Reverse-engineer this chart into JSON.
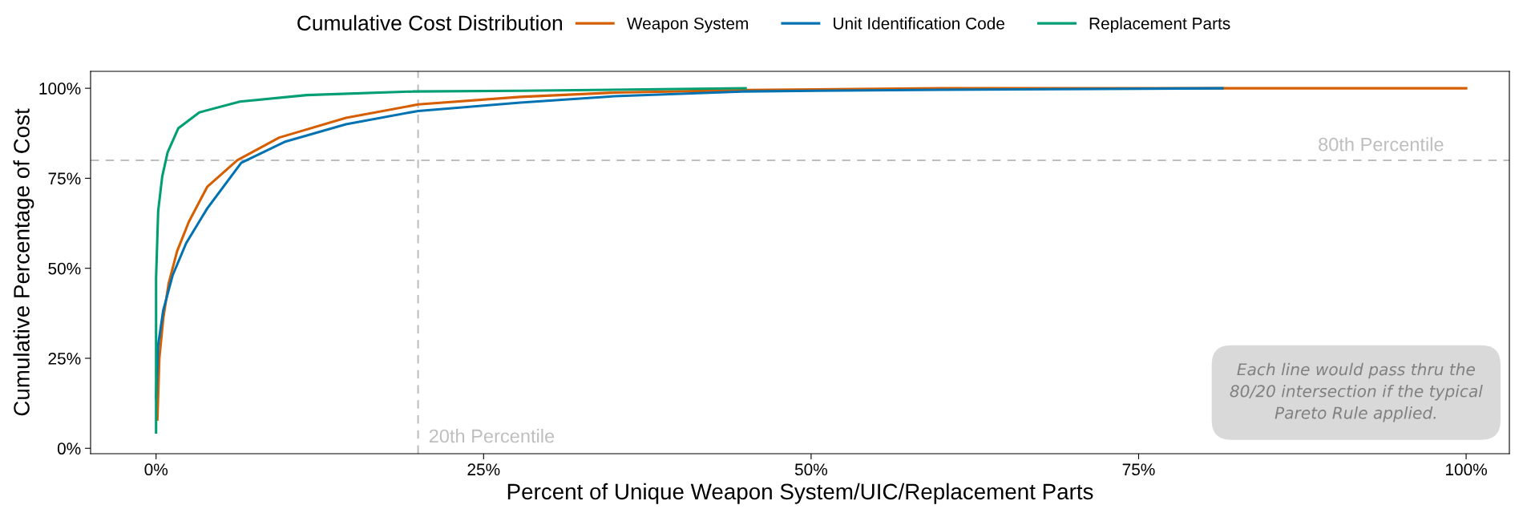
{
  "chart_data": {
    "type": "line",
    "legend_title": "Cumulative Cost Distribution",
    "legend": "top",
    "xlabel": "Percent of Unique Weapon System/UIC/Replacement Parts",
    "ylabel": "Cumulative Percentage of Cost",
    "xlim": [
      -5,
      103.3
    ],
    "ylim": [
      -1.5,
      104.7
    ],
    "xticks": [
      {
        "value": 0,
        "label": "0%"
      },
      {
        "value": 25,
        "label": "25%"
      },
      {
        "value": 50,
        "label": "50%"
      },
      {
        "value": 75,
        "label": "75%"
      },
      {
        "value": 100,
        "label": "100%"
      }
    ],
    "yticks": [
      {
        "value": 0,
        "label": "0%"
      },
      {
        "value": 25,
        "label": "25%"
      },
      {
        "value": 50,
        "label": "50%"
      },
      {
        "value": 75,
        "label": "75%"
      },
      {
        "value": 100,
        "label": "100%"
      }
    ],
    "grid": false,
    "line_style": "solid",
    "marker": "none",
    "series": [
      {
        "name": "Weapon System",
        "color": "#d55e00",
        "x": [
          0.1,
          0.25,
          0.55,
          0.96,
          1.6,
          2.5,
          3.9,
          6.2,
          9.4,
          14.5,
          20,
          27.8,
          35,
          45,
          60,
          100
        ],
        "values": [
          8,
          25,
          36.1,
          45.8,
          54.7,
          62.9,
          72.6,
          80,
          86.3,
          91.8,
          95.5,
          97.6,
          98.8,
          99.5,
          100,
          100
        ]
      },
      {
        "name": "Unit Identification Code",
        "color": "#0072b2",
        "x": [
          0,
          0.16,
          0.55,
          1.27,
          2.3,
          3.9,
          6.5,
          9.8,
          14.5,
          20,
          27.8,
          35,
          44.7,
          60,
          81.4
        ],
        "values": [
          13.9,
          28.7,
          38.4,
          48.1,
          57,
          66.6,
          79.3,
          85.1,
          90,
          93.7,
          96,
          97.8,
          99.1,
          99.6,
          100
        ]
      },
      {
        "name": "Replacement Parts",
        "color": "#009e73",
        "x": [
          0,
          0,
          0.16,
          0.47,
          0.88,
          1.7,
          3.3,
          6.4,
          11.5,
          19.6,
          27.8,
          45
        ],
        "values": [
          4.4,
          47.3,
          65.9,
          75.5,
          82.2,
          88.9,
          93.3,
          96.3,
          98.1,
          99.1,
          99.3,
          100
        ]
      }
    ],
    "ref_lines": [
      {
        "axis": "y",
        "value": 80,
        "label": "80th Percentile",
        "color": "#bebebe",
        "line_style": "dashed"
      },
      {
        "axis": "x",
        "value": 20,
        "label": "20th Percentile",
        "color": "#bebebe",
        "line_style": "dashed"
      }
    ],
    "annotations": [
      "Each line would pass thru the\n80/20 intersection if the typical\nPareto Rule applied."
    ]
  }
}
